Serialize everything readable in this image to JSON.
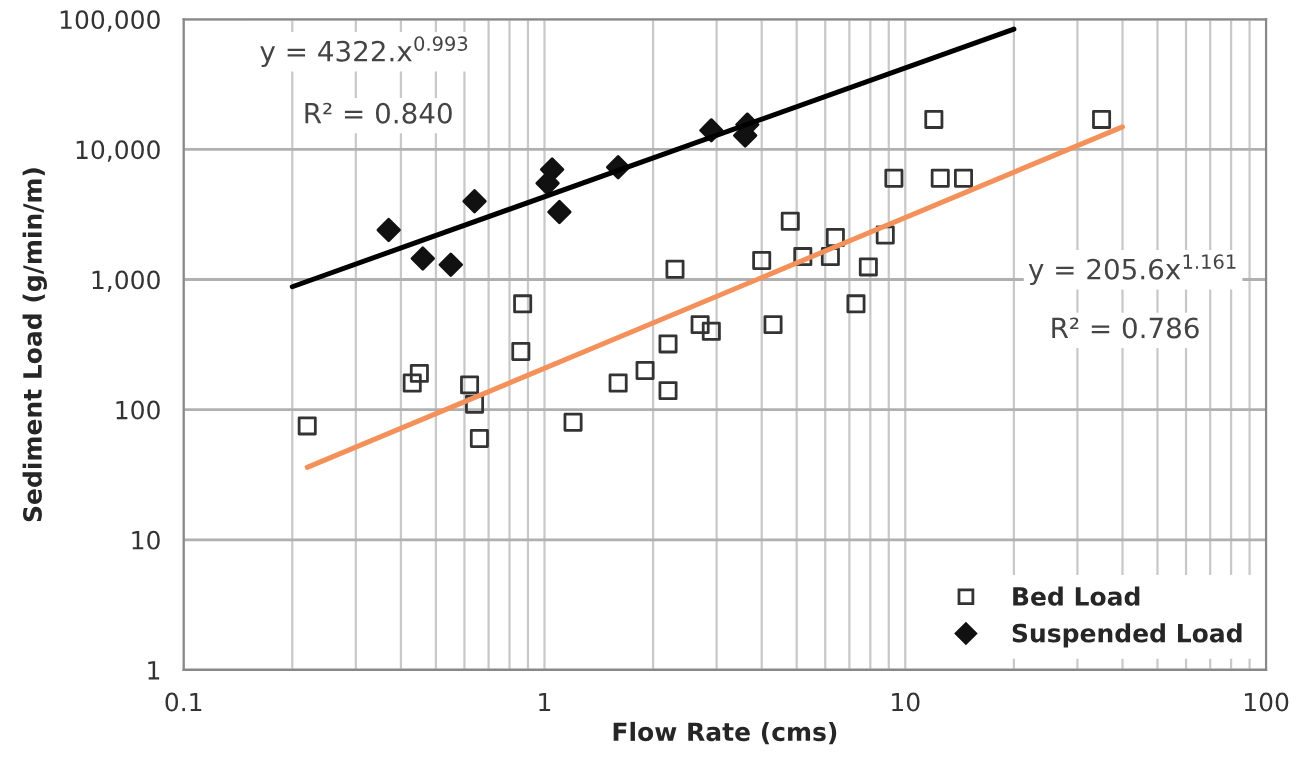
{
  "chart_data": {
    "type": "scatter",
    "xlabel": "Flow Rate (cms)",
    "ylabel": "Sediment Load (g/min/m)",
    "log": "xy",
    "grid": true,
    "legend": "bottom right",
    "xlim": [
      0.1,
      100
    ],
    "xticks": [
      0.1,
      1,
      10,
      100
    ],
    "ylim": [
      1,
      100000
    ],
    "yticks": [
      1,
      10,
      100,
      {
        "value": 1000,
        "label": "1,000"
      },
      {
        "value": 10000,
        "label": "10,000"
      },
      {
        "value": 100000,
        "label": "100,000"
      }
    ],
    "series": [
      {
        "name": "Bed Load",
        "marker": "square",
        "color": "#333333",
        "x": [
          0.22,
          0.43,
          0.45,
          0.62,
          0.64,
          0.66,
          0.86,
          0.87,
          1.2,
          1.6,
          1.9,
          2.2,
          2.2,
          2.3,
          2.7,
          2.9,
          4,
          4.3,
          4.8,
          5.2,
          6.2,
          6.4,
          7.3,
          7.9,
          8.8,
          9.3,
          12,
          12.5,
          14.5,
          35
        ],
        "values": [
          75,
          160,
          190,
          155,
          110,
          60,
          280,
          650,
          80,
          160,
          200,
          140,
          320,
          1200,
          450,
          400,
          1400,
          450,
          2800,
          1500,
          1500,
          2100,
          650,
          1250,
          2200,
          6000,
          17000,
          6000,
          6000,
          17000
        ]
      },
      {
        "name": "Suspended Load",
        "marker": "diamond",
        "color": "#111111",
        "x": [
          0.37,
          0.46,
          0.55,
          0.64,
          1.02,
          1.05,
          1.1,
          1.6,
          2.9,
          3.6,
          3.65
        ],
        "values": [
          2400,
          1450,
          1300,
          4000,
          5500,
          7000,
          3300,
          7300,
          14000,
          12800,
          15500
        ]
      },
      {
        "type": "line",
        "marker": "none",
        "color": "#000000",
        "x": [
          0.2,
          20
        ],
        "values": [
          880,
          84000
        ]
      },
      {
        "type": "line",
        "marker": "none",
        "color": "#f4915a",
        "x": [
          0.22,
          40
        ],
        "values": [
          36,
          14900
        ]
      }
    ],
    "annotations": [
      "y = 4322.x$^{0.993}$",
      "R² = 0.840",
      "y = 205.6x$^{1.161}$",
      "R² = 0.786"
    ]
  }
}
